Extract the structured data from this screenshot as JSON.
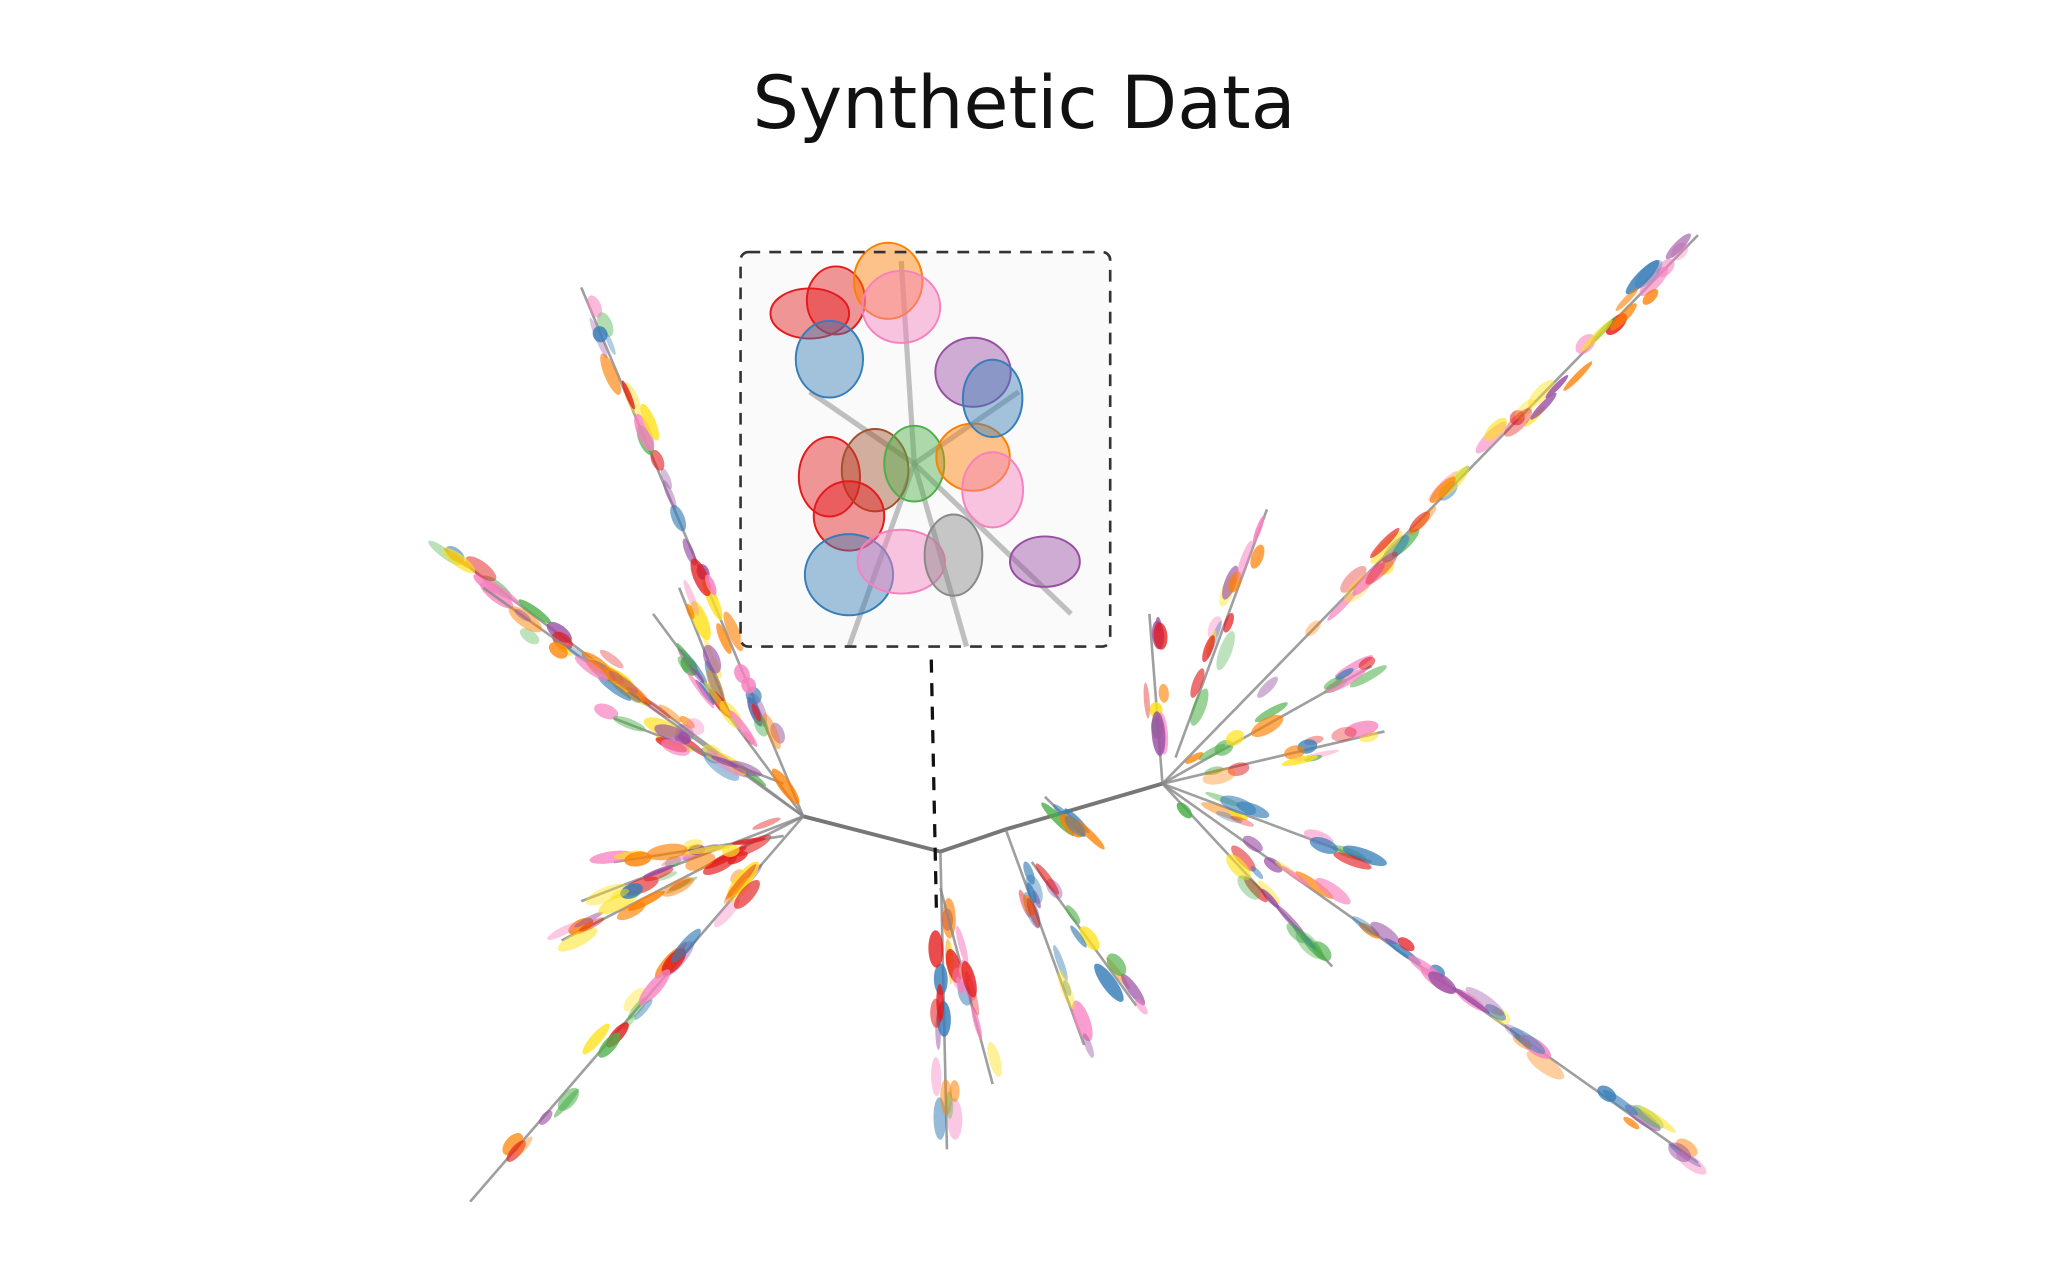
{
  "title": "Synthetic Data"
}
